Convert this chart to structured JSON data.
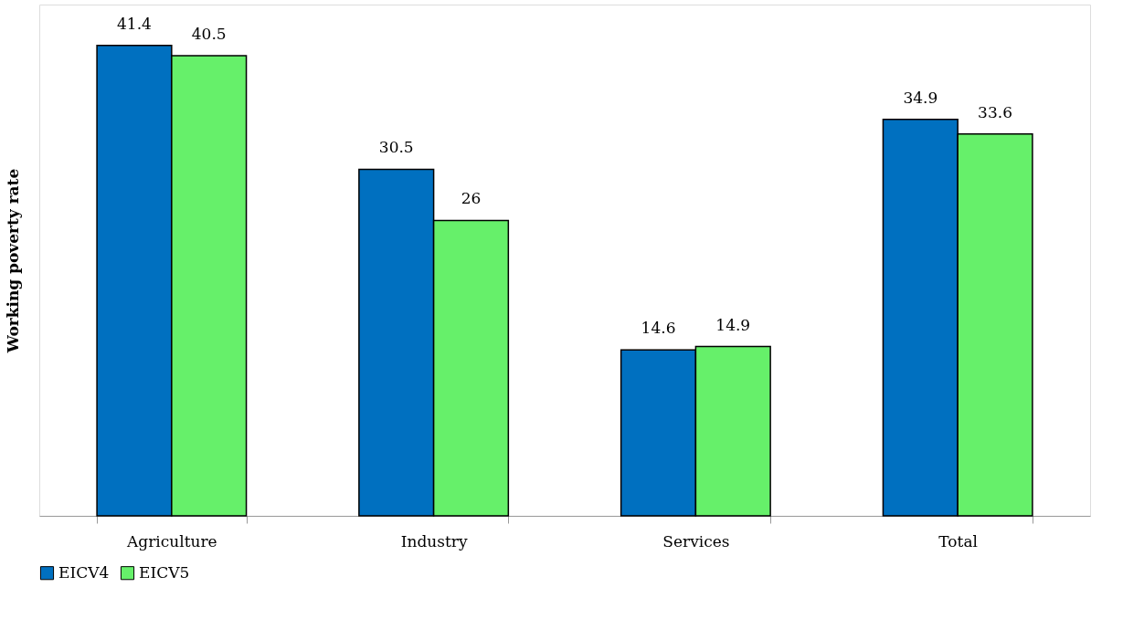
{
  "chart_data": {
    "type": "bar",
    "ylabel": "Working poverty rate",
    "categories": [
      "Agriculture",
      "Industry",
      "Services",
      "Total"
    ],
    "series": [
      {
        "name": "EICV4",
        "color": "#0070c0",
        "values": [
          41.4,
          30.5,
          14.6,
          34.9
        ]
      },
      {
        "name": "EICV5",
        "color": "#66f06a",
        "values": [
          40.5,
          26,
          14.9,
          33.6
        ]
      }
    ],
    "ylim": [
      0,
      45
    ],
    "data_labels": true,
    "legend": "bottom",
    "grid": false,
    "tick_labels": "x"
  }
}
